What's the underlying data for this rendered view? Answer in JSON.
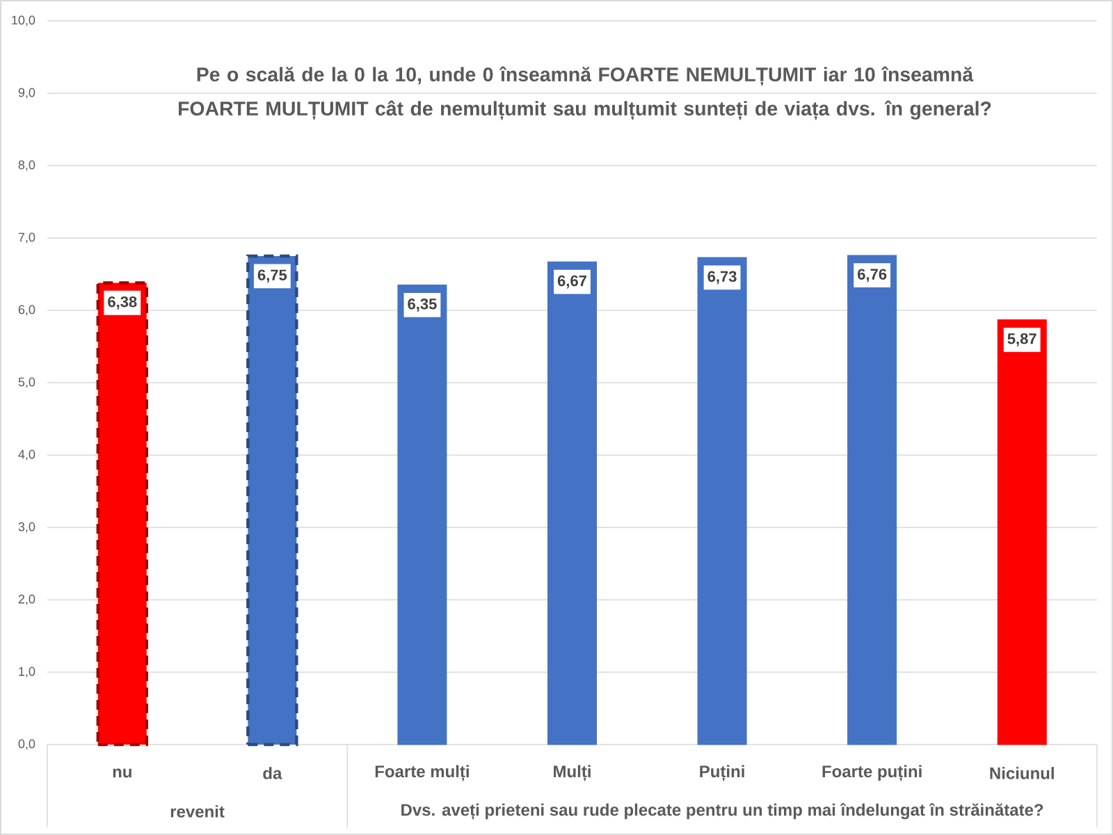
{
  "chart_data": {
    "type": "bar",
    "title": "Pe o scală de la 0 la 10, unde 0 înseamnă FOARTE NEMULȚUMIT iar 10 înseamnă FOARTE MULȚUMIT cât de nemulțumit sau mulțumit sunteți de viața dvs. în general?",
    "categories": [
      "nu",
      "da",
      "Foarte mulți",
      "Mulți",
      "Puțini",
      "Foarte puțini",
      "Niciunul"
    ],
    "series": [
      {
        "values": [
          6.38,
          6.75,
          null,
          null,
          null,
          null,
          null
        ],
        "colors": [
          "#ff0000",
          "#4472c4",
          null,
          null,
          null,
          null,
          null
        ],
        "line_style": "dashed",
        "value_labels": [
          "6,38",
          "6,75",
          null,
          null,
          null,
          null,
          null
        ]
      },
      {
        "values": [
          null,
          null,
          6.35,
          6.67,
          6.73,
          6.76,
          5.87
        ],
        "colors": [
          null,
          null,
          "#4472c4",
          "#4472c4",
          "#4472c4",
          "#4472c4",
          "#ff0000"
        ],
        "line_style": "solid",
        "value_labels": [
          null,
          null,
          "6,35",
          "6,67",
          "6,73",
          "6,76",
          "5,87"
        ]
      }
    ],
    "ylim": [
      0,
      10
    ],
    "yticks": [
      {
        "value": 0,
        "label": "0,0"
      },
      {
        "value": 1,
        "label": "1,0"
      },
      {
        "value": 2,
        "label": "2,0"
      },
      {
        "value": 3,
        "label": "3,0"
      },
      {
        "value": 4,
        "label": "4,0"
      },
      {
        "value": 5,
        "label": "5,0"
      },
      {
        "value": 6,
        "label": "6,0"
      },
      {
        "value": 7,
        "label": "7,0"
      },
      {
        "value": 8,
        "label": "8,0"
      },
      {
        "value": 9,
        "label": "9,0"
      },
      {
        "value": 10,
        "label": "10,0"
      }
    ],
    "grid": "y",
    "annotations": [
      "revenit",
      "Dvs. aveți prieteni sau rude plecate pentru un timp mai îndelungat în străinătate?"
    ]
  }
}
